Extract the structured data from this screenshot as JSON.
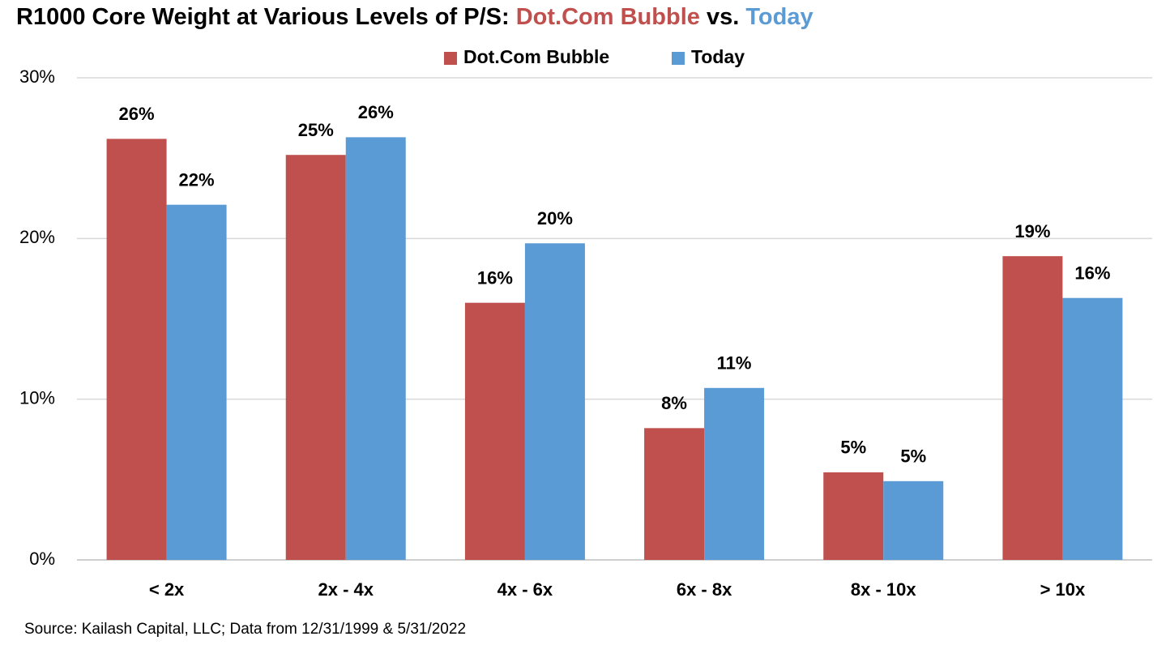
{
  "chart_data": {
    "type": "bar",
    "title": "R1000 Core Weight at Various Levels of P/S:",
    "title_joiner": "vs.",
    "categories": [
      "< 2x",
      "2x - 4x",
      "4x - 6x",
      "6x - 8x",
      "8x - 10x",
      "> 10x"
    ],
    "series": [
      {
        "name": "Dot.Com Bubble",
        "color": "#c0504d",
        "values": [
          26.2,
          25.2,
          16.0,
          8.2,
          5.45,
          18.9
        ],
        "value_labels": [
          "26%",
          "25%",
          "16%",
          "8%",
          "5%",
          "19%"
        ]
      },
      {
        "name": "Today",
        "color": "#5b9bd5",
        "values": [
          22.1,
          26.3,
          19.7,
          10.7,
          4.9,
          16.3
        ],
        "value_labels": [
          "22%",
          "26%",
          "20%",
          "11%",
          "5%",
          "16%"
        ]
      }
    ],
    "ylim": [
      0,
      30
    ],
    "yticks": [
      {
        "value": 0,
        "label": "0%"
      },
      {
        "value": 10,
        "label": "10%"
      },
      {
        "value": 20,
        "label": "20%"
      },
      {
        "value": 30,
        "label": "30%"
      }
    ],
    "grid": true,
    "legend": "top",
    "source": "Source: Kailash Capital, LLC; Data from 12/31/1999 & 5/31/2022"
  }
}
